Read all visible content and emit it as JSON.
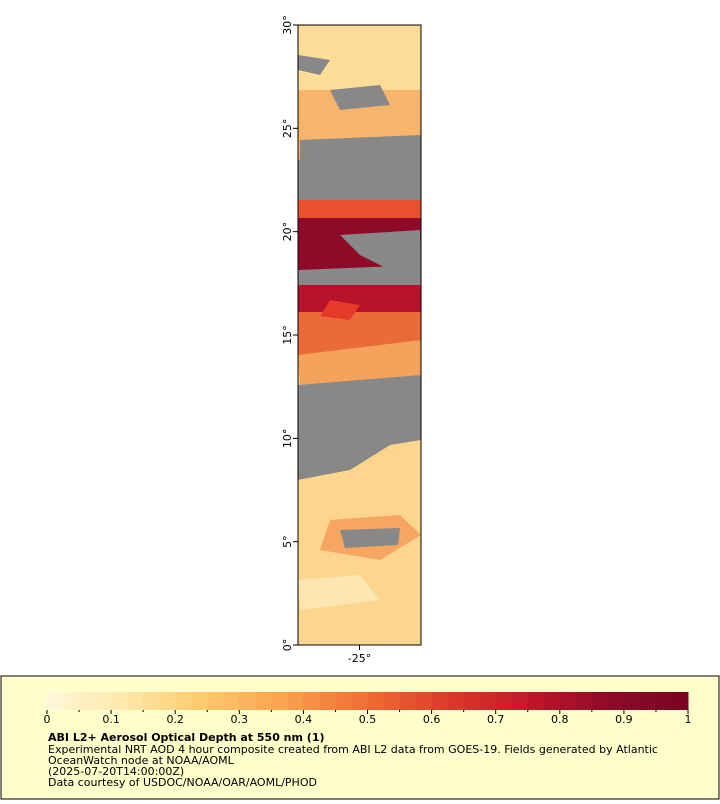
{
  "map": {
    "lat_range": [
      0,
      30
    ],
    "lon_range": [
      -26.5,
      -23.5
    ],
    "lat_ticks": [
      {
        "value": 0,
        "label": "0°"
      },
      {
        "value": 5,
        "label": "5°"
      },
      {
        "value": 10,
        "label": "10°"
      },
      {
        "value": 15,
        "label": "15°"
      },
      {
        "value": 20,
        "label": "20°"
      },
      {
        "value": 25,
        "label": "25°"
      },
      {
        "value": 30,
        "label": "30°"
      }
    ],
    "lon_ticks": [
      {
        "value": -25,
        "label": "-25°"
      }
    ]
  },
  "colorbar": {
    "range": [
      0,
      1
    ],
    "ticks": [
      0,
      0.1,
      0.2,
      0.3,
      0.4,
      0.5,
      0.6,
      0.7,
      0.8,
      0.9,
      1
    ],
    "colors": [
      "#fff8dc",
      "#fee8a8",
      "#fdc86a",
      "#f9a04c",
      "#f06c34",
      "#dd3a28",
      "#c4162a",
      "#8e0a28",
      "#7a0526"
    ]
  },
  "legend": {
    "title": "ABI L2+ Aerosol Optical Depth at 550 nm (1)",
    "lines": [
      "Experimental NRT AOD 4 hour composite created from ABI L2 data from GOES-19. Fields generated by Atlantic",
      "OceanWatch node at NOAA/AOML",
      "(2025-07-20T14:00:00Z)",
      "Data courtesy of USDOC/NOAA/OAR/AOML/PHOD"
    ]
  }
}
